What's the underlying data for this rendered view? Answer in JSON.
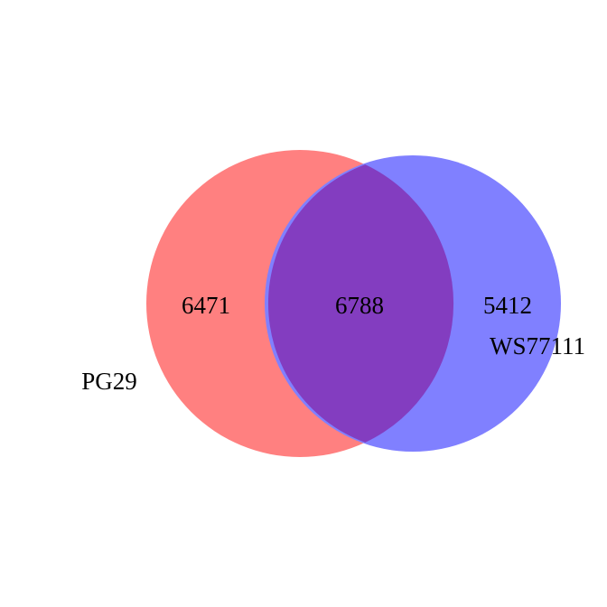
{
  "diagram": {
    "type": "venn",
    "sets": [
      {
        "name": "PG29",
        "only_count": "6471",
        "color": "#ff8080"
      },
      {
        "name": "WS77111",
        "only_count": "5412",
        "color": "#8080ff"
      }
    ],
    "intersection": {
      "count": "6788",
      "color": "#833dc0"
    }
  }
}
